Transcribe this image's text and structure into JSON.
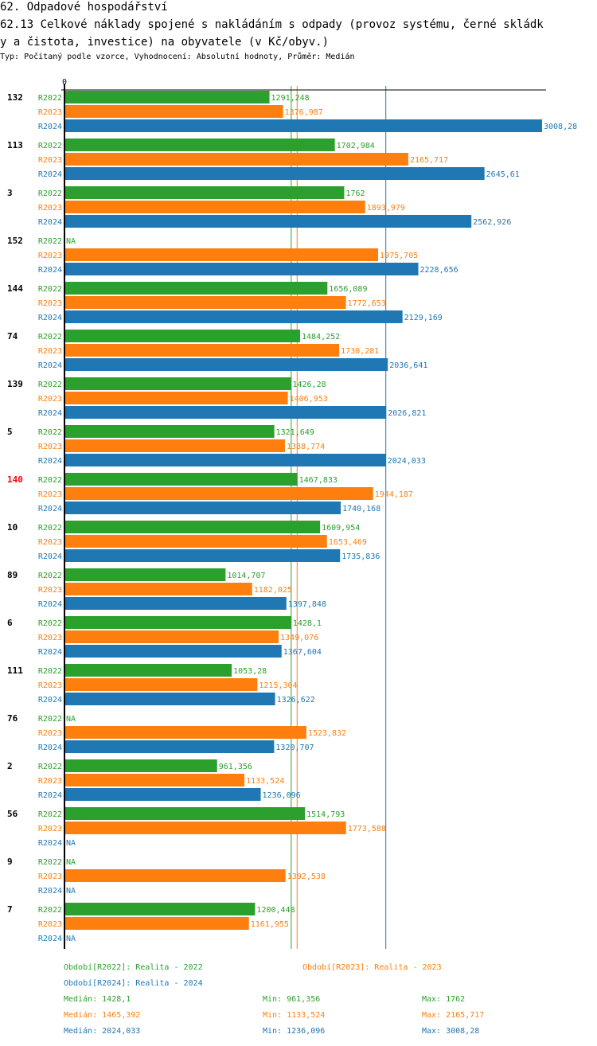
{
  "header": {
    "section": "62. Odpadové hospodářství",
    "title_line1": "62.13 Celkové náklady spojené s nakládáním s odpady (provoz systému, černé skládk",
    "title_line2": "y a čistota, investice) na obyvatele (v Kč/obyv.)",
    "subtitle": "Typ: Počítaný podle vzorce, Vyhodnocení: Absolutní hodnoty, Průměr: Medián"
  },
  "colors": {
    "R2022": "#2ca02c",
    "R2023": "#ff7f0e",
    "R2024": "#1f77b4",
    "highlight": "#ff0000"
  },
  "chart_data": {
    "type": "bar",
    "orientation": "horizontal",
    "title": "62.13 Celkové náklady spojené s nakládáním s odpady (provoz systému, černé skládky a čistota, investice) na obyvatele (v Kč/obyv.)",
    "xlabel": "",
    "ylabel": "",
    "x_tick_labels": [
      "0"
    ],
    "xlim": [
      0,
      3008.28
    ],
    "series_names": [
      "R2022",
      "R2023",
      "R2024"
    ],
    "highlighted_category": "140",
    "categories": [
      "132",
      "113",
      "3",
      "152",
      "144",
      "74",
      "139",
      "5",
      "140",
      "10",
      "89",
      "6",
      "111",
      "76",
      "2",
      "56",
      "9",
      "7"
    ],
    "series": [
      {
        "name": "R2022",
        "values": [
          1291.248,
          1702.984,
          1762,
          null,
          1656.089,
          1484.252,
          1426.28,
          1321.649,
          1467.833,
          1609.954,
          1014.707,
          1428.1,
          1053.28,
          null,
          961.356,
          1514.793,
          null,
          1200.448
        ],
        "labels": [
          "1291,248",
          "1702,984",
          "1762",
          "NA",
          "1656,089",
          "1484,252",
          "1426,28",
          "1321,649",
          "1467,833",
          "1609,954",
          "1014,707",
          "1428,1",
          "1053,28",
          "NA",
          "961,356",
          "1514,793",
          "NA",
          "1200,448"
        ]
      },
      {
        "name": "R2023",
        "values": [
          1376.987,
          2165.717,
          1893.979,
          1975.705,
          1772.653,
          1730.281,
          1406.953,
          1388.774,
          1944.187,
          1653.469,
          1182.025,
          1349.076,
          1215.304,
          1523.832,
          1133.524,
          1773.588,
          1392.538,
          1161.955
        ],
        "labels": [
          "1376,987",
          "2165,717",
          "1893,979",
          "1975,705",
          "1772,653",
          "1730,281",
          "1406,953",
          "1388,774",
          "1944,187",
          "1653,469",
          "1182,025",
          "1349,076",
          "1215,304",
          "1523,832",
          "1133,524",
          "1773,588",
          "1392,538",
          "1161,955"
        ]
      },
      {
        "name": "R2024",
        "values": [
          3008.28,
          2645.61,
          2562.926,
          2228.656,
          2129.169,
          2036.641,
          2026.821,
          2024.033,
          1740.168,
          1735.836,
          1397.848,
          1367.604,
          1326.622,
          1320.707,
          1236.096,
          null,
          null,
          null
        ],
        "labels": [
          "3008,28",
          "2645,61",
          "2562,926",
          "2228,656",
          "2129,169",
          "2036,641",
          "2026,821",
          "2024,033",
          "1740,168",
          "1735,836",
          "1397,848",
          "1367,604",
          "1326,622",
          "1320,707",
          "1236,096",
          "NA",
          "NA",
          "NA"
        ]
      }
    ],
    "reference_lines": [
      {
        "series": "R2022",
        "type": "median",
        "value": 1428.1
      },
      {
        "series": "R2023",
        "type": "median",
        "value": 1465.392
      },
      {
        "series": "R2024",
        "type": "median",
        "value": 2024.033
      }
    ]
  },
  "legend": {
    "periods": [
      {
        "series": "R2022",
        "text": "Období[R2022]: Realita - 2022"
      },
      {
        "series": "R2023",
        "text": "Období[R2023]: Realita - 2023"
      },
      {
        "series": "R2024",
        "text": "Období[R2024]: Realita - 2024"
      }
    ],
    "stats": [
      {
        "series": "R2022",
        "median": "Medián: 1428,1",
        "min": "Min: 961,356",
        "max": "Max: 1762"
      },
      {
        "series": "R2023",
        "median": "Medián: 1465,392",
        "min": "Min: 1133,524",
        "max": "Max: 2165,717"
      },
      {
        "series": "R2024",
        "median": "Medián: 2024,033",
        "min": "Min: 1236,096",
        "max": "Max: 3008,28"
      }
    ]
  }
}
